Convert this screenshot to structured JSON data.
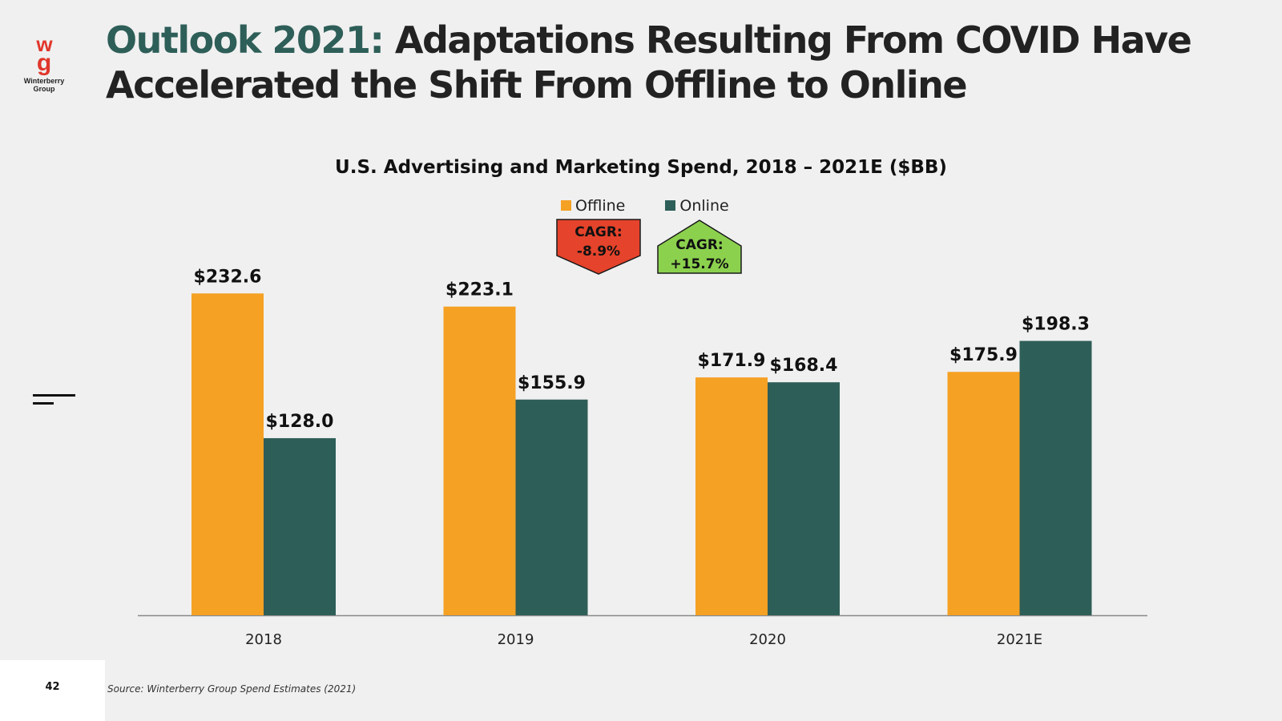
{
  "brand": {
    "logo_mark_w": "w",
    "logo_mark_g": "g",
    "logo_text_line1": "Winterberry",
    "logo_text_line2": "Group",
    "logo_color": "#e0372b"
  },
  "header": {
    "title_highlight": "Outlook 2021:",
    "title_rest": "Adaptations Resulting From COVID Have Accelerated the Shift From Offline to Online",
    "highlight_color": "#2e5e58"
  },
  "footer": {
    "page_number": "42",
    "source": "Source: Winterberry Group Spend Estimates (2021)"
  },
  "chart_data": {
    "type": "bar",
    "title": "U.S. Advertising and Marketing Spend, 2018 – 2021E ($BB)",
    "categories": [
      "2018",
      "2019",
      "2020",
      "2021E"
    ],
    "series": [
      {
        "name": "Offline",
        "color": "#f5a124",
        "values": [
          232.6,
          223.1,
          171.9,
          175.9
        ],
        "labels": [
          "$232.6",
          "$223.1",
          "$171.9",
          "$175.9"
        ]
      },
      {
        "name": "Online",
        "color": "#2e5e58",
        "values": [
          128.0,
          155.9,
          168.4,
          198.3
        ],
        "labels": [
          "$128.0",
          "$155.9",
          "$168.4",
          "$198.3"
        ]
      }
    ],
    "ylim": [
      0,
      240
    ],
    "xlabel": "",
    "ylabel": "",
    "grid": false,
    "legend_position": "top-center",
    "annotations": [
      {
        "series": "Offline",
        "label": "CAGR:",
        "value": "-8.9%",
        "color": "#e5432b",
        "direction": "down"
      },
      {
        "series": "Online",
        "label": "CAGR:",
        "value": "+15.7%",
        "color": "#8cd14e",
        "direction": "up"
      }
    ]
  }
}
